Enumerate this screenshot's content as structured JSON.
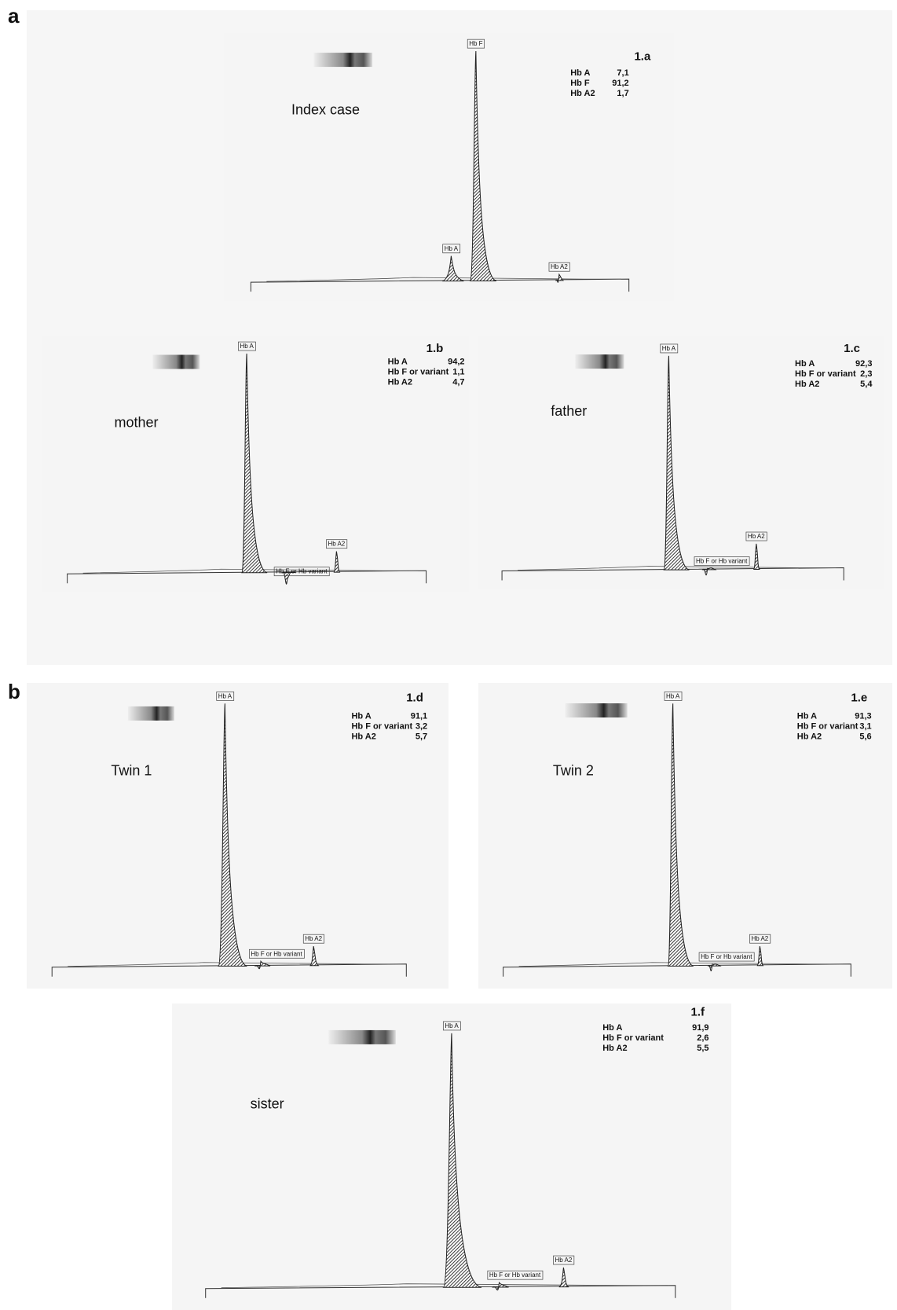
{
  "section_labels": [
    "a",
    "b"
  ],
  "panels": [
    {
      "id": "1.a",
      "subject": "Index case",
      "results": [
        [
          "Hb A",
          "7,1"
        ],
        [
          "Hb F",
          "91,2"
        ],
        [
          "Hb A2",
          "1,7"
        ]
      ],
      "peak_labels": [
        "Hb A",
        "Hb F",
        "Hb A2"
      ]
    },
    {
      "id": "1.b",
      "subject": "mother",
      "results": [
        [
          "Hb A",
          "94,2"
        ],
        [
          "Hb F or variant",
          "1,1"
        ],
        [
          "Hb A2",
          "4,7"
        ]
      ],
      "peak_labels": [
        "Hb A",
        "Hb F or Hb variant",
        "Hb A2"
      ]
    },
    {
      "id": "1.c",
      "subject": "father",
      "results": [
        [
          "Hb A",
          "92,3"
        ],
        [
          "Hb F or variant",
          "2,3"
        ],
        [
          "Hb A2",
          "5,4"
        ]
      ],
      "peak_labels": [
        "Hb A",
        "Hb F or Hb variant",
        "Hb A2"
      ]
    },
    {
      "id": "1.d",
      "subject": "Twin 1",
      "results": [
        [
          "Hb A",
          "91,1"
        ],
        [
          "Hb F or variant",
          "3,2"
        ],
        [
          "Hb A2",
          "5,7"
        ]
      ],
      "peak_labels": [
        "Hb A",
        "Hb F or Hb variant",
        "Hb A2"
      ]
    },
    {
      "id": "1.e",
      "subject": "Twin 2",
      "results": [
        [
          "Hb A",
          "91,3"
        ],
        [
          "Hb F or variant",
          "3,1"
        ],
        [
          "Hb A2",
          "5,6"
        ]
      ],
      "peak_labels": [
        "Hb A",
        "Hb F or Hb variant",
        "Hb A2"
      ]
    },
    {
      "id": "1.f",
      "subject": "sister",
      "results": [
        [
          "Hb A",
          "91,9"
        ],
        [
          "Hb F or variant",
          "2,6"
        ],
        [
          "Hb A2",
          "5,5"
        ]
      ],
      "peak_labels": [
        "Hb A",
        "Hb F or Hb variant",
        "Hb A2"
      ]
    }
  ]
}
